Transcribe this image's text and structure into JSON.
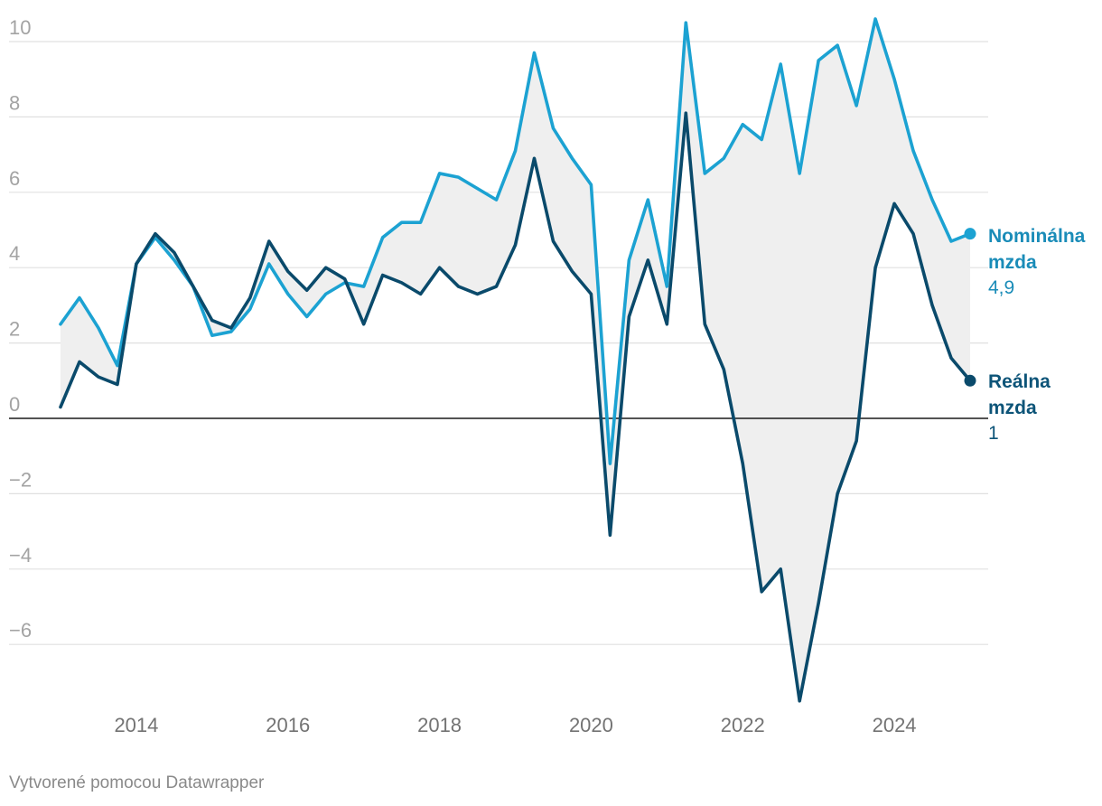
{
  "chart_data": {
    "type": "line",
    "title": "",
    "xlabel": "",
    "ylabel": "",
    "x_start": 2013.0,
    "x_step": 0.25,
    "xlim": [
      2013.0,
      2025.0
    ],
    "ylim": [
      -7.6,
      10.6
    ],
    "y_ticks": [
      10,
      8,
      6,
      4,
      2,
      0,
      -2,
      -4,
      -6
    ],
    "y_tick_labels": [
      "10",
      "8",
      "6",
      "4",
      "2",
      "0",
      "−2",
      "−4",
      "−6"
    ],
    "x_ticks": [
      2014,
      2016,
      2018,
      2020,
      2022,
      2024
    ],
    "x_tick_labels": [
      "2014",
      "2016",
      "2018",
      "2020",
      "2022",
      "2024"
    ],
    "grid": true,
    "range_fill": "#efefef",
    "series": [
      {
        "name": "Nominálna mzda",
        "label_line1": "Nominálna",
        "label_line2": "mzda",
        "end_label": "4,9",
        "color": "#1ca2d2",
        "label_color": "#1a8cb8",
        "values": [
          2.5,
          3.2,
          2.4,
          1.4,
          4.1,
          4.8,
          4.2,
          3.5,
          2.2,
          2.3,
          2.9,
          4.1,
          3.3,
          2.7,
          3.3,
          3.6,
          3.5,
          4.8,
          5.2,
          5.2,
          6.5,
          6.4,
          6.1,
          5.8,
          7.1,
          9.7,
          7.7,
          6.9,
          6.2,
          -1.2,
          4.2,
          5.8,
          3.5,
          10.5,
          6.5,
          6.9,
          7.8,
          7.4,
          9.4,
          6.5,
          9.5,
          9.9,
          8.3,
          10.6,
          9.0,
          7.1,
          5.8,
          4.7,
          4.9
        ]
      },
      {
        "name": "Reálna mzda",
        "label_line1": "Reálna",
        "label_line2": "mzda",
        "end_label": "1",
        "color": "#0a4a6b",
        "label_color": "#0d5478",
        "values": [
          0.3,
          1.5,
          1.1,
          0.9,
          4.1,
          4.9,
          4.4,
          3.5,
          2.6,
          2.4,
          3.2,
          4.7,
          3.9,
          3.4,
          4.0,
          3.7,
          2.5,
          3.8,
          3.6,
          3.3,
          4.0,
          3.5,
          3.3,
          3.5,
          4.6,
          6.9,
          4.7,
          3.9,
          3.3,
          -3.1,
          2.7,
          4.2,
          2.5,
          8.1,
          2.5,
          1.3,
          -1.2,
          -4.6,
          -4.0,
          -7.5,
          -4.9,
          -2.0,
          -0.6,
          4.0,
          5.7,
          4.9,
          3.0,
          1.6,
          1.0
        ]
      }
    ]
  },
  "footer": "Vytvorené pomocou Datawrapper"
}
